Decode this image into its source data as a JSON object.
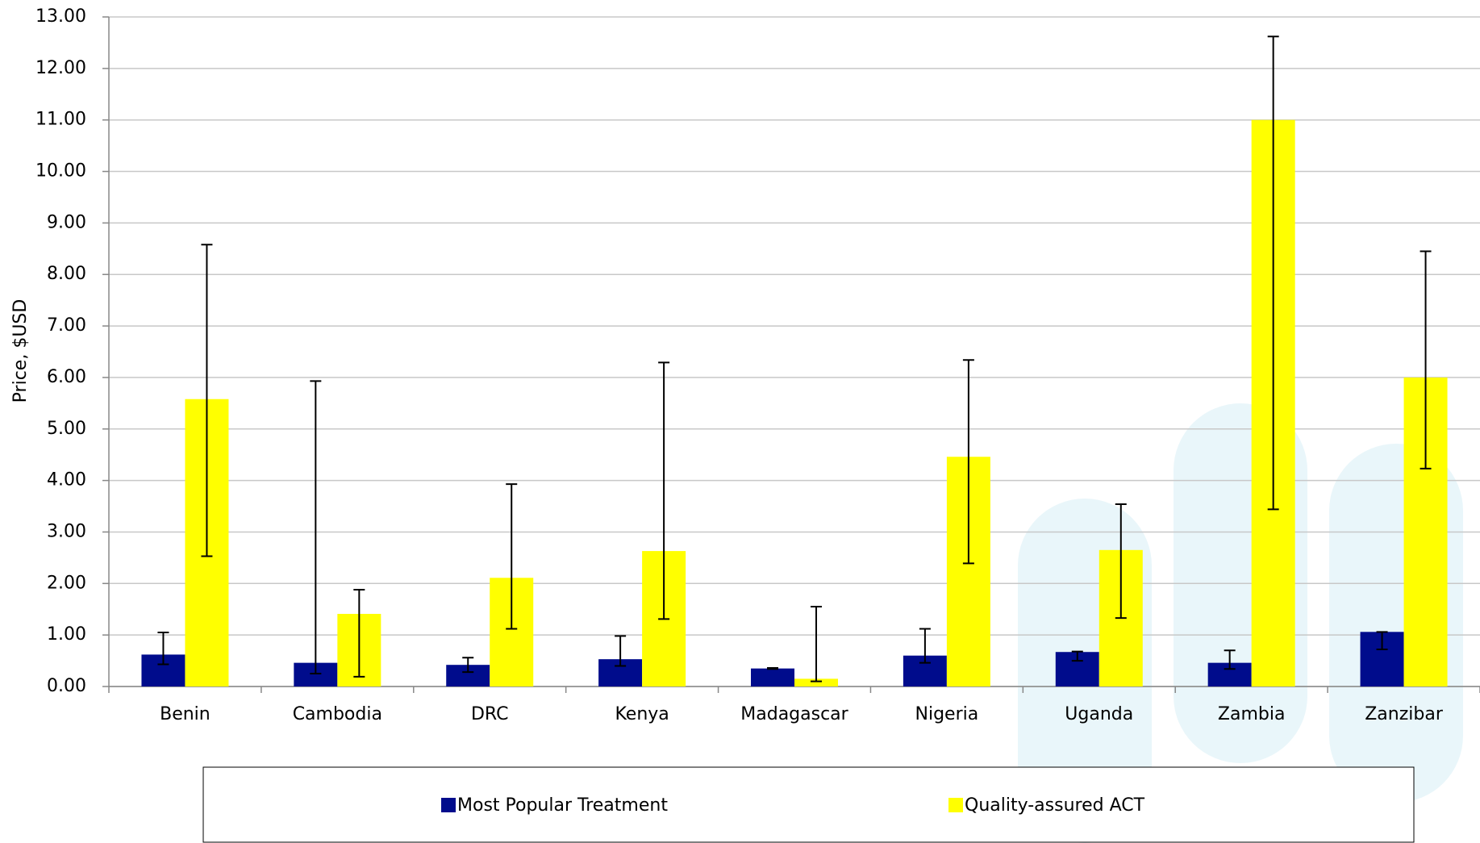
{
  "chart_data": {
    "type": "bar",
    "y_label": "Price, $USD",
    "categories": [
      "Benin",
      "Cambodia",
      "DRC",
      "Kenya",
      "Madagascar",
      "Nigeria",
      "Uganda",
      "Zambia",
      "Zanzibar"
    ],
    "series": [
      {
        "name": "Most Popular Treatment",
        "color": "#000c8c",
        "values": [
          0.62,
          0.46,
          0.42,
          0.53,
          0.35,
          0.6,
          0.67,
          0.46,
          1.06
        ],
        "lower": [
          0.43,
          0.25,
          0.28,
          0.4,
          0.34,
          0.46,
          0.5,
          0.34,
          0.72
        ],
        "upper": [
          1.05,
          5.93,
          0.56,
          0.98,
          0.36,
          1.12,
          0.68,
          0.7,
          1.06
        ]
      },
      {
        "name": "Quality-assured ACT",
        "color": "#ffff00",
        "values": [
          5.58,
          1.41,
          2.11,
          2.63,
          0.15,
          4.46,
          2.65,
          11.0,
          6.0
        ],
        "lower": [
          2.53,
          0.19,
          1.12,
          1.31,
          0.1,
          2.39,
          1.33,
          3.44,
          4.23
        ],
        "upper": [
          8.58,
          1.88,
          3.93,
          6.29,
          1.55,
          6.34,
          3.54,
          12.62,
          8.45
        ]
      }
    ],
    "ylim": [
      0,
      13
    ],
    "yticks": [
      {
        "value": 0,
        "label": "0.00"
      },
      {
        "value": 1,
        "label": "1.00"
      },
      {
        "value": 2,
        "label": "2.00"
      },
      {
        "value": 3,
        "label": "3.00"
      },
      {
        "value": 4,
        "label": "4.00"
      },
      {
        "value": 5,
        "label": "5.00"
      },
      {
        "value": 6,
        "label": "6.00"
      },
      {
        "value": 7,
        "label": "7.00"
      },
      {
        "value": 8,
        "label": "8.00"
      },
      {
        "value": 9,
        "label": "9.00"
      },
      {
        "value": 10,
        "label": "10.00"
      },
      {
        "value": 11,
        "label": "11.00"
      },
      {
        "value": 12,
        "label": "12.00"
      },
      {
        "value": 13,
        "label": "13.00"
      }
    ],
    "grid": true,
    "legend": "bottom"
  }
}
